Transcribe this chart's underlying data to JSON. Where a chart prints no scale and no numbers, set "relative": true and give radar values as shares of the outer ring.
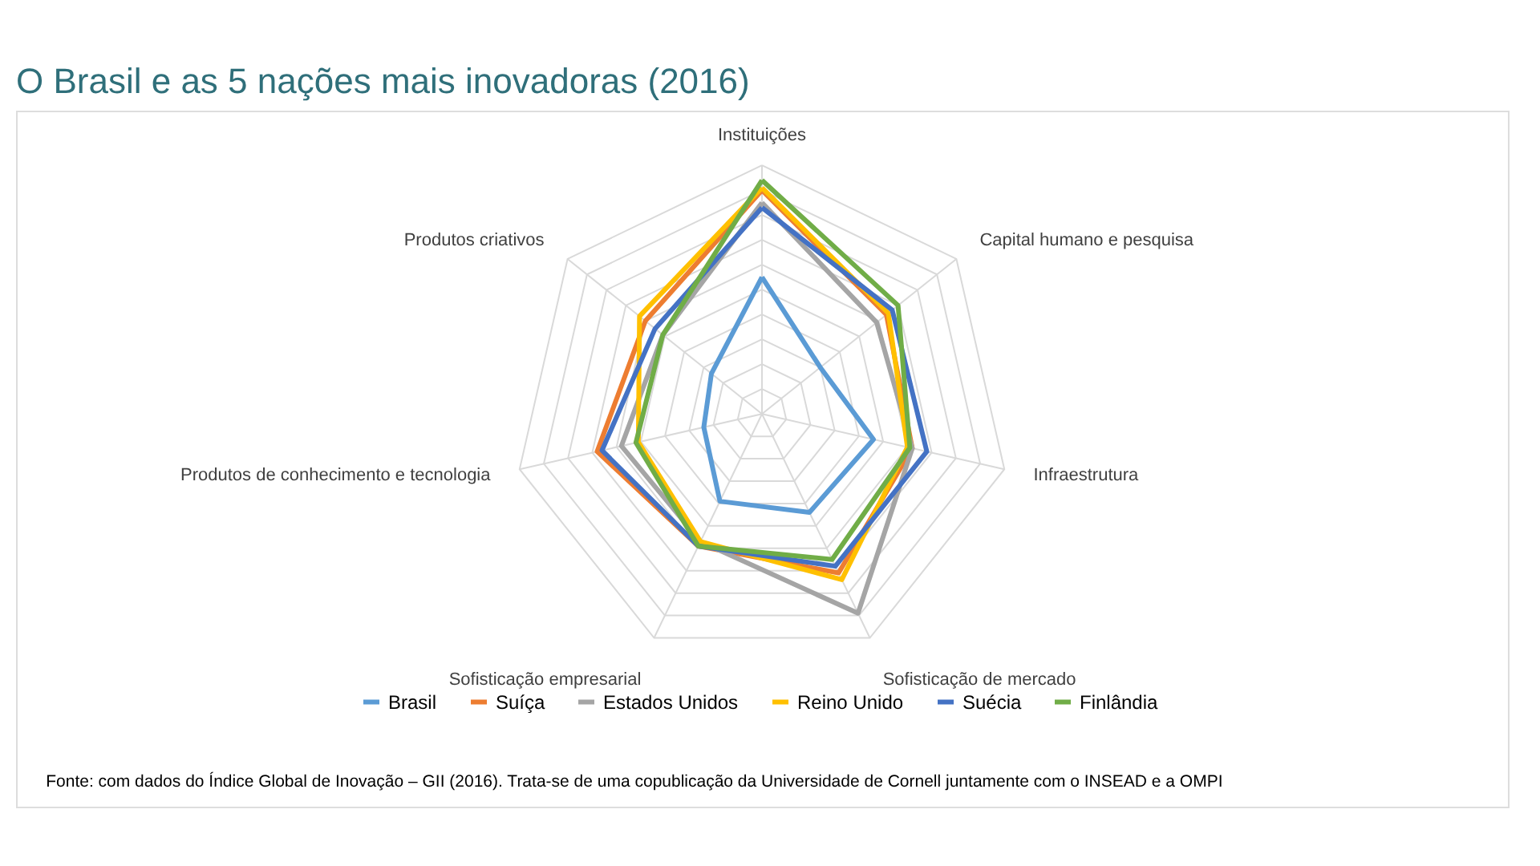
{
  "chart_data": {
    "type": "radar",
    "title": "O Brasil e as 5 nações mais inovadoras (2016)",
    "relative": true,
    "grid": true,
    "legend": "bottom",
    "categories": [
      "Instituições",
      "Capital humano e pesquisa",
      "Infraestrutura",
      "Sofisticação de mercado",
      "Sofisticação empresarial",
      "Produtos de conhecimento e tecnologia",
      "Produtos criativos"
    ],
    "series": [
      {
        "name": "Brasil",
        "color": "#5b9bd5",
        "values": [
          0.55,
          0.3,
          0.46,
          0.44,
          0.39,
          0.24,
          0.26
        ]
      },
      {
        "name": "Suíça",
        "color": "#ed7d31",
        "values": [
          0.9,
          0.64,
          0.62,
          0.71,
          0.59,
          0.68,
          0.6
        ]
      },
      {
        "name": "Estados Unidos",
        "color": "#a5a5a5",
        "values": [
          0.85,
          0.59,
          0.62,
          0.89,
          0.57,
          0.58,
          0.51
        ]
      },
      {
        "name": "Reino Unido",
        "color": "#ffc000",
        "values": [
          0.91,
          0.65,
          0.6,
          0.74,
          0.57,
          0.51,
          0.63
        ]
      },
      {
        "name": "Suécia",
        "color": "#4472c4",
        "values": [
          0.83,
          0.67,
          0.68,
          0.68,
          0.59,
          0.66,
          0.55
        ]
      },
      {
        "name": "Finlândia",
        "color": "#70ad47",
        "values": [
          0.94,
          0.7,
          0.61,
          0.65,
          0.59,
          0.52,
          0.51
        ]
      }
    ],
    "annotations": [
      "Fonte: com dados do Índice Global de Inovação – GII (2016). Trata-se de uma copublicação da Universidade de Cornell juntamente com o INSEAD e a OMPI"
    ]
  }
}
